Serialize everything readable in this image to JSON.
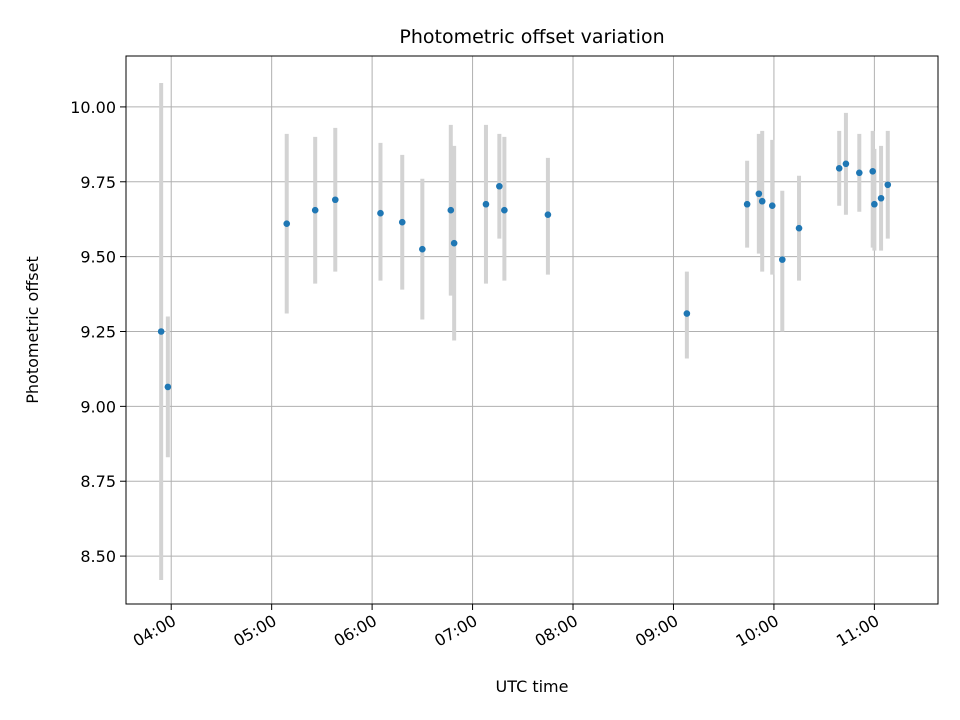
{
  "chart_data": {
    "type": "scatter",
    "title": "Photometric offset variation",
    "xlabel": "UTC time",
    "ylabel": "Photometric offset",
    "x_ticks": [
      "04:00",
      "05:00",
      "06:00",
      "07:00",
      "08:00",
      "09:00",
      "10:00",
      "11:00"
    ],
    "y_ticks": [
      "8.50",
      "8.75",
      "9.00",
      "9.25",
      "9.50",
      "9.75",
      "10.00"
    ],
    "xlim": [
      "03:33",
      "11:38"
    ],
    "ylim": [
      8.34,
      10.17
    ],
    "grid": true,
    "colors": {
      "point": "#1f77b4",
      "errorbar": "#d3d3d3",
      "grid": "#b0b0b0"
    },
    "points": [
      {
        "x": "03:54",
        "y": 9.25,
        "yerr": [
          8.42,
          10.08
        ]
      },
      {
        "x": "03:58",
        "y": 9.065,
        "yerr": [
          8.83,
          9.3
        ]
      },
      {
        "x": "05:09",
        "y": 9.61,
        "yerr": [
          9.31,
          9.91
        ]
      },
      {
        "x": "05:26",
        "y": 9.655,
        "yerr": [
          9.41,
          9.9
        ]
      },
      {
        "x": "05:38",
        "y": 9.69,
        "yerr": [
          9.45,
          9.93
        ]
      },
      {
        "x": "06:05",
        "y": 9.645,
        "yerr": [
          9.42,
          9.88
        ]
      },
      {
        "x": "06:18",
        "y": 9.615,
        "yerr": [
          9.39,
          9.84
        ]
      },
      {
        "x": "06:30",
        "y": 9.525,
        "yerr": [
          9.29,
          9.76
        ]
      },
      {
        "x": "06:47",
        "y": 9.655,
        "yerr": [
          9.37,
          9.94
        ]
      },
      {
        "x": "06:49",
        "y": 9.545,
        "yerr": [
          9.22,
          9.87
        ]
      },
      {
        "x": "07:08",
        "y": 9.675,
        "yerr": [
          9.41,
          9.94
        ]
      },
      {
        "x": "07:16",
        "y": 9.735,
        "yerr": [
          9.56,
          9.91
        ]
      },
      {
        "x": "07:19",
        "y": 9.655,
        "yerr": [
          9.42,
          9.9
        ]
      },
      {
        "x": "07:45",
        "y": 9.64,
        "yerr": [
          9.44,
          9.83
        ]
      },
      {
        "x": "09:08",
        "y": 9.31,
        "yerr": [
          9.16,
          9.45
        ]
      },
      {
        "x": "09:44",
        "y": 9.675,
        "yerr": [
          9.53,
          9.82
        ]
      },
      {
        "x": "09:51",
        "y": 9.71,
        "yerr": [
          9.51,
          9.91
        ]
      },
      {
        "x": "09:53",
        "y": 9.685,
        "yerr": [
          9.45,
          9.92
        ]
      },
      {
        "x": "09:59",
        "y": 9.67,
        "yerr": [
          9.44,
          9.89
        ]
      },
      {
        "x": "10:05",
        "y": 9.49,
        "yerr": [
          9.25,
          9.72
        ]
      },
      {
        "x": "10:15",
        "y": 9.595,
        "yerr": [
          9.42,
          9.77
        ]
      },
      {
        "x": "10:39",
        "y": 9.795,
        "yerr": [
          9.67,
          9.92
        ]
      },
      {
        "x": "10:43",
        "y": 9.81,
        "yerr": [
          9.64,
          9.98
        ]
      },
      {
        "x": "10:51",
        "y": 9.78,
        "yerr": [
          9.65,
          9.91
        ]
      },
      {
        "x": "10:59",
        "y": 9.785,
        "yerr": [
          9.53,
          9.92
        ]
      },
      {
        "x": "11:00",
        "y": 9.675,
        "yerr": [
          9.52,
          9.86
        ]
      },
      {
        "x": "11:04",
        "y": 9.695,
        "yerr": [
          9.52,
          9.87
        ]
      },
      {
        "x": "11:08",
        "y": 9.74,
        "yerr": [
          9.56,
          9.92
        ]
      }
    ]
  }
}
